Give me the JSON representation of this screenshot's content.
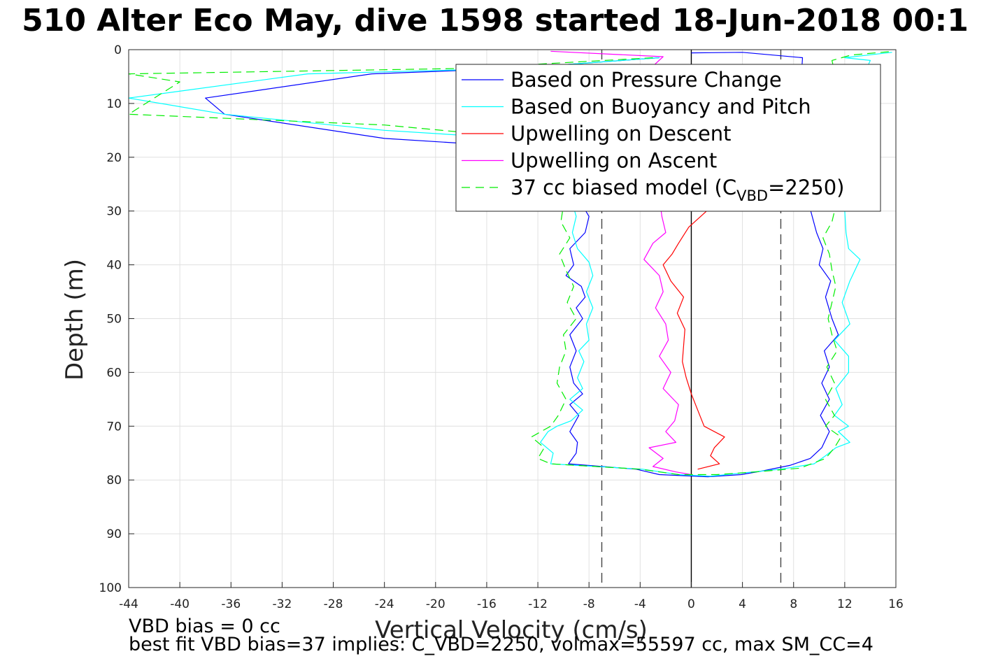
{
  "chart_data": {
    "type": "line",
    "title": "510 Alter Eco May, dive 1598 started 18-Jun-2018 00:1",
    "xlabel": "Vertical Velocity (cm/s)",
    "ylabel": "Depth (m)",
    "xlim": [
      -44,
      16
    ],
    "ylim": [
      0,
      100
    ],
    "y_reversed": true,
    "grid": true,
    "x_ticks": [
      "-44",
      "-40",
      "-36",
      "-32",
      "-28",
      "-24",
      "-20",
      "-16",
      "-12",
      "-8",
      "-4",
      "0",
      "4",
      "8",
      "12",
      "16"
    ],
    "y_ticks": [
      "0",
      "10",
      "20",
      "30",
      "40",
      "50",
      "60",
      "70",
      "80",
      "90",
      "100"
    ],
    "legend_position": "top-right",
    "legend": [
      {
        "name": "Based on Pressure Change",
        "color": "#0000ff",
        "dash": "solid"
      },
      {
        "name": "Based on Buoyancy and Pitch",
        "color": "#00ffff",
        "dash": "solid"
      },
      {
        "name": "Upwelling on Descent",
        "color": "#ff0000",
        "dash": "solid"
      },
      {
        "name": "Upwelling on Ascent",
        "color": "#ff00ff",
        "dash": "solid"
      },
      {
        "name": "37 cc biased model (C",
        "sub": "VBD",
        "suffix": "=2250)",
        "color": "#00ee00",
        "dash": "dashed"
      }
    ],
    "reference_lines": [
      {
        "x": -7,
        "color": "#444444",
        "dash": "dashed"
      },
      {
        "x": 7,
        "color": "#444444",
        "dash": "dashed"
      },
      {
        "x": 0,
        "color": "#000000",
        "dash": "solid"
      }
    ],
    "series": [
      {
        "name": "Based on Pressure Change",
        "color": "#0000ff",
        "points": [
          [
            -2.5,
            1.5
          ],
          [
            -14,
            3.5
          ],
          [
            -25,
            4.5
          ],
          [
            -38,
            9
          ],
          [
            -36.5,
            12
          ],
          [
            -24,
            16.5
          ],
          [
            -14,
            18
          ],
          [
            -10,
            22
          ],
          [
            -9,
            27
          ],
          [
            -8,
            31
          ],
          [
            -8.3,
            34
          ],
          [
            -9.5,
            37
          ],
          [
            -9.2,
            40
          ],
          [
            -9.8,
            42
          ],
          [
            -8.6,
            44
          ],
          [
            -8.3,
            46
          ],
          [
            -9,
            48
          ],
          [
            -8.5,
            50
          ],
          [
            -9.5,
            53
          ],
          [
            -9,
            56
          ],
          [
            -9.5,
            59
          ],
          [
            -9.2,
            62
          ],
          [
            -8.5,
            64
          ],
          [
            -9.5,
            66
          ],
          [
            -8.8,
            68
          ],
          [
            -9.5,
            71
          ],
          [
            -8.9,
            73
          ],
          [
            -9,
            75
          ],
          [
            -9.6,
            77
          ],
          [
            -4.3,
            78
          ],
          [
            -2.5,
            79
          ],
          [
            1.3,
            79.4
          ],
          [
            3.9,
            79
          ],
          [
            5.6,
            78.3
          ],
          [
            7.7,
            77.3
          ],
          [
            9.3,
            76
          ],
          [
            10.2,
            74
          ],
          [
            10.8,
            71
          ],
          [
            10.1,
            68
          ],
          [
            10.8,
            65
          ],
          [
            10.2,
            62
          ],
          [
            10.8,
            59
          ],
          [
            10.4,
            56
          ],
          [
            11.5,
            53
          ],
          [
            11,
            50
          ],
          [
            10.5,
            46
          ],
          [
            10.9,
            43
          ],
          [
            10,
            40
          ],
          [
            10.3,
            37
          ],
          [
            9.8,
            34
          ],
          [
            8.2,
            20
          ],
          [
            8.7,
            1.5
          ],
          [
            4,
            0.5
          ],
          [
            0,
            0.6
          ]
        ]
      },
      {
        "name": "Based on Buoyancy and Pitch",
        "color": "#00ffff",
        "points": [
          [
            -2.5,
            1.5
          ],
          [
            -14,
            3.5
          ],
          [
            -30,
            4.5
          ],
          [
            -44,
            9
          ],
          [
            -36.5,
            12
          ],
          [
            -24,
            15
          ],
          [
            -14,
            16.5
          ],
          [
            -10.5,
            20
          ],
          [
            -9.6,
            26
          ],
          [
            -9,
            31
          ],
          [
            -9.3,
            34
          ],
          [
            -8.9,
            37
          ],
          [
            -8,
            39.5
          ],
          [
            -7.7,
            42
          ],
          [
            -8.2,
            45
          ],
          [
            -7.7,
            48
          ],
          [
            -8.2,
            51
          ],
          [
            -8,
            54
          ],
          [
            -8.8,
            56
          ],
          [
            -8.4,
            58
          ],
          [
            -8.9,
            61
          ],
          [
            -8.5,
            63
          ],
          [
            -9.5,
            65
          ],
          [
            -8.5,
            67
          ],
          [
            -9.4,
            69
          ],
          [
            -10.5,
            70
          ],
          [
            -11.2,
            71
          ],
          [
            -11.8,
            73
          ],
          [
            -10.8,
            75
          ],
          [
            -11,
            77
          ],
          [
            -3.8,
            78
          ],
          [
            -1,
            79
          ],
          [
            1.5,
            79.3
          ],
          [
            4,
            78.7
          ],
          [
            7,
            78
          ],
          [
            9.6,
            77
          ],
          [
            10.5,
            75.5
          ],
          [
            11.3,
            74
          ],
          [
            12.4,
            73
          ],
          [
            11.5,
            71
          ],
          [
            12.3,
            70
          ],
          [
            11.2,
            68
          ],
          [
            11.8,
            66
          ],
          [
            11.3,
            63
          ],
          [
            12.3,
            60
          ],
          [
            12.3,
            57
          ],
          [
            11.2,
            54
          ],
          [
            12.4,
            51
          ],
          [
            11.8,
            47
          ],
          [
            12.4,
            43
          ],
          [
            13.2,
            39
          ],
          [
            12.3,
            37
          ],
          [
            12.1,
            34
          ],
          [
            12,
            30
          ],
          [
            12.5,
            20
          ],
          [
            12.5,
            10
          ],
          [
            14,
            2
          ],
          [
            12,
            1.5
          ],
          [
            15.7,
            0.5
          ]
        ]
      },
      {
        "name": "Upwelling on Descent",
        "color": "#ff0000",
        "points": [
          [
            1.2,
            30
          ],
          [
            -0.2,
            33
          ],
          [
            -1,
            36
          ],
          [
            -1.5,
            38
          ],
          [
            -2.2,
            40
          ],
          [
            -1.6,
            43
          ],
          [
            -0.6,
            46
          ],
          [
            -1.1,
            49
          ],
          [
            -0.5,
            52
          ],
          [
            -0.6,
            55
          ],
          [
            -0.7,
            58
          ],
          [
            -0.4,
            61
          ],
          [
            0,
            64
          ],
          [
            0.5,
            67
          ],
          [
            1,
            70
          ],
          [
            2.6,
            72
          ],
          [
            1.8,
            74
          ],
          [
            1.5,
            75.5
          ],
          [
            2.2,
            77
          ],
          [
            0.5,
            78
          ]
        ]
      },
      {
        "name": "Upwelling on Ascent",
        "color": "#ff00ff",
        "points": [
          [
            -11,
            0.3
          ],
          [
            -2.2,
            1.3
          ],
          [
            -3.2,
            3.5
          ],
          [
            -3.5,
            6
          ],
          [
            -3.6,
            8
          ],
          [
            -2.3,
            31
          ],
          [
            -2,
            34
          ],
          [
            -3,
            36
          ],
          [
            -3.7,
            39
          ],
          [
            -2.5,
            42
          ],
          [
            -2.2,
            45
          ],
          [
            -2.8,
            48
          ],
          [
            -2,
            51
          ],
          [
            -1.8,
            54
          ],
          [
            -2.5,
            57
          ],
          [
            -1.6,
            60
          ],
          [
            -2.2,
            63
          ],
          [
            -1,
            66
          ],
          [
            -1.3,
            69
          ],
          [
            -2,
            71
          ],
          [
            -1.2,
            73
          ],
          [
            -3.3,
            74
          ],
          [
            -2.2,
            76
          ],
          [
            -3,
            77.5
          ],
          [
            -1.2,
            78.5
          ],
          [
            0,
            79
          ]
        ]
      },
      {
        "name": "37 cc biased model (CVBD=2250)",
        "color": "#00ee00",
        "dash": "dashed",
        "points": [
          [
            -3,
            1.5
          ],
          [
            -18,
            3.5
          ],
          [
            -44,
            4.5
          ],
          [
            -40,
            6
          ],
          [
            -44,
            12
          ],
          [
            -24,
            14
          ],
          [
            -15,
            16
          ],
          [
            -11.5,
            20
          ],
          [
            -10.5,
            26
          ],
          [
            -10,
            29
          ],
          [
            -10.2,
            32
          ],
          [
            -9.5,
            35
          ],
          [
            -10.3,
            38
          ],
          [
            -9.8,
            41
          ],
          [
            -9.2,
            44
          ],
          [
            -9.7,
            47
          ],
          [
            -9,
            50
          ],
          [
            -10,
            53
          ],
          [
            -9.8,
            56
          ],
          [
            -10.3,
            59
          ],
          [
            -10.5,
            62
          ],
          [
            -9.8,
            65
          ],
          [
            -10.4,
            68
          ],
          [
            -11,
            70
          ],
          [
            -12.5,
            72
          ],
          [
            -11.5,
            74
          ],
          [
            -12,
            76
          ],
          [
            -11,
            77
          ],
          [
            -4,
            78
          ],
          [
            -1,
            79
          ],
          [
            2,
            79
          ],
          [
            5,
            78.5
          ],
          [
            8.5,
            77.8
          ],
          [
            10.5,
            76
          ],
          [
            11.2,
            74
          ],
          [
            11.7,
            72
          ],
          [
            10.5,
            70
          ],
          [
            11.2,
            68
          ],
          [
            10.5,
            65
          ],
          [
            11.2,
            62
          ],
          [
            10.6,
            59
          ],
          [
            11.4,
            56
          ],
          [
            11,
            53
          ],
          [
            10.7,
            50
          ],
          [
            11,
            47
          ],
          [
            11.3,
            44
          ],
          [
            11,
            41
          ],
          [
            10.8,
            38
          ],
          [
            10.3,
            35
          ],
          [
            11,
            32
          ],
          [
            12,
            22
          ],
          [
            11.5,
            12
          ],
          [
            11.2,
            4
          ],
          [
            11,
            2
          ],
          [
            12.5,
            1
          ],
          [
            15.8,
            0.3
          ]
        ]
      }
    ],
    "notes": [
      "VBD bias = 0 cc",
      "best fit VBD bias=37 implies: C_VBD=2250, volmax=55597 cc, max SM_CC=4"
    ]
  }
}
